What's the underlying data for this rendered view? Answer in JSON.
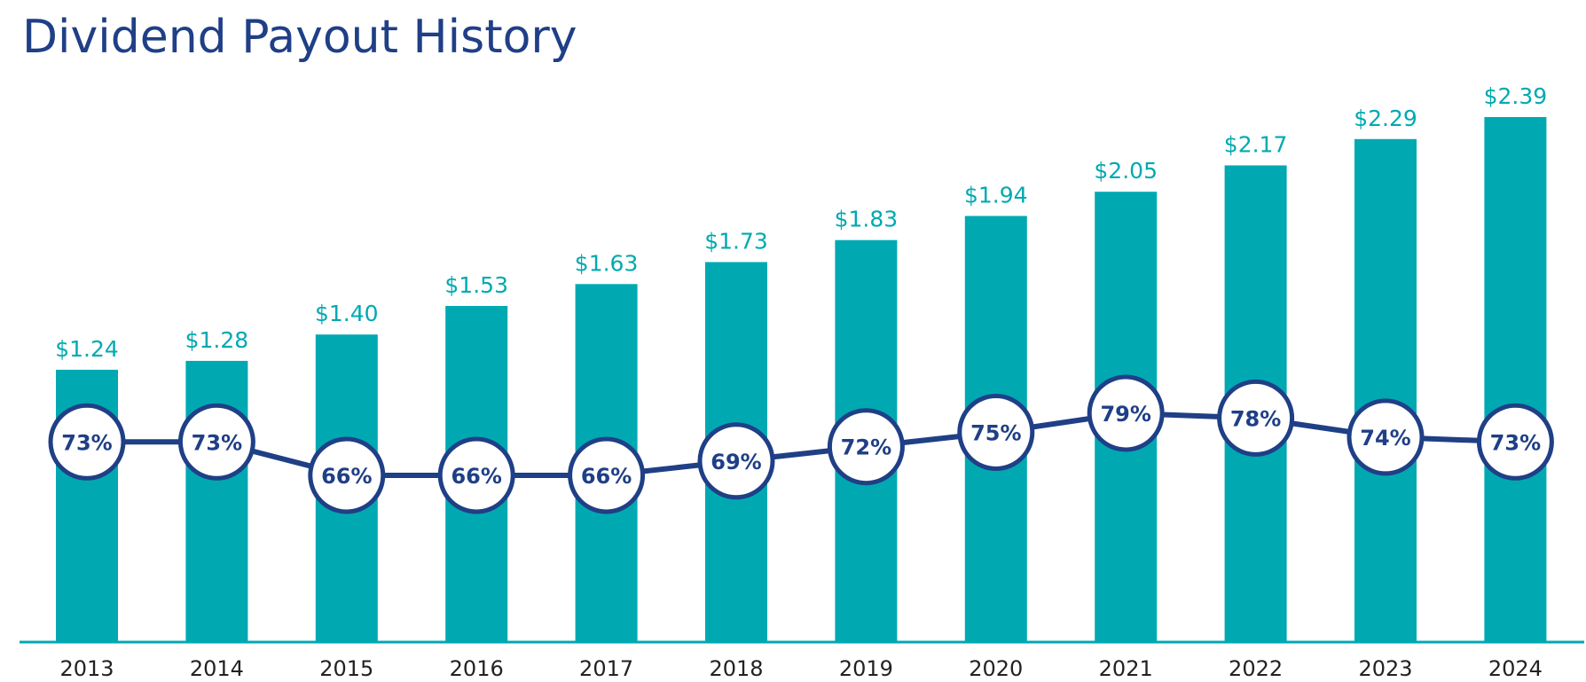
{
  "chart_data": {
    "type": "bar",
    "title": "Dividend Payout History",
    "xlabel": "",
    "ylabel": "",
    "categories": [
      "2013",
      "2014",
      "2015",
      "2016",
      "2017",
      "2018",
      "2019",
      "2020",
      "2021",
      "2022",
      "2023",
      "2024"
    ],
    "series": [
      {
        "type": "bar",
        "values": [
          1.24,
          1.28,
          1.4,
          1.53,
          1.63,
          1.73,
          1.83,
          1.94,
          2.05,
          2.17,
          2.29,
          2.39
        ],
        "labels": [
          "$1.24",
          "$1.28",
          "$1.40",
          "$1.53",
          "$1.63",
          "$1.73",
          "$1.83",
          "$1.94",
          "$2.05",
          "$2.17",
          "$2.29",
          "$2.39"
        ]
      },
      {
        "type": "line",
        "values": [
          73,
          73,
          66,
          66,
          66,
          69,
          72,
          75,
          79,
          78,
          74,
          73
        ],
        "labels": [
          "73%",
          "73%",
          "66%",
          "66%",
          "66%",
          "69%",
          "72%",
          "75%",
          "79%",
          "78%",
          "74%",
          "73%"
        ]
      }
    ],
    "ylim": [
      0,
      2.39
    ],
    "grid": false,
    "legend": "none",
    "colors": {
      "bars": "#00a9b2",
      "line": "#1f3f86",
      "marker_fill": "#ffffff",
      "title": "#1f3f86",
      "tick_labels": "#222222"
    }
  }
}
